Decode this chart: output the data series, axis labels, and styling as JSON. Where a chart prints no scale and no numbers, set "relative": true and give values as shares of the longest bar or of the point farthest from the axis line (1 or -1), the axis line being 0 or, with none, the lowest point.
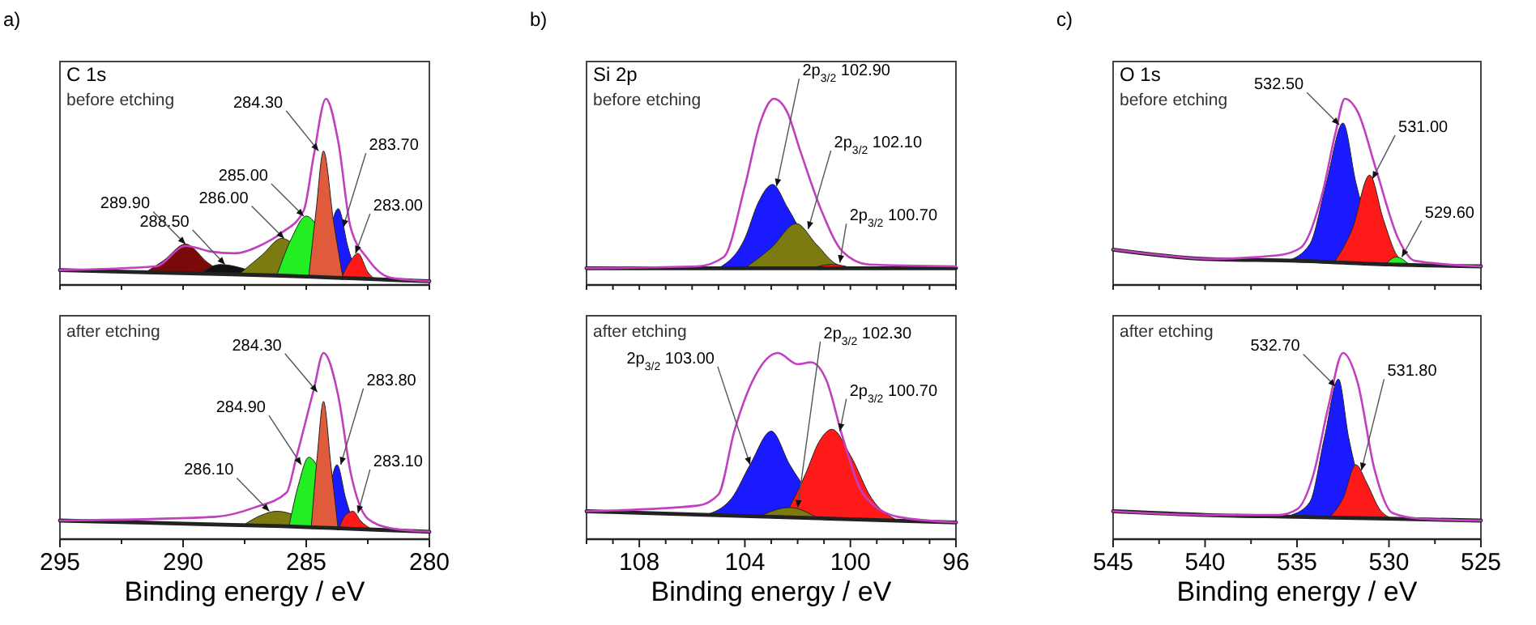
{
  "chart_data": [
    {
      "type": "area",
      "title": "C 1s",
      "subtitle": "before etching",
      "relative": true,
      "tick_labels": false,
      "xlim": [
        295,
        280
      ],
      "xticks": [
        {
          "value": 295,
          "label": null
        },
        {
          "value": 292.5,
          "label": null
        },
        {
          "value": 290,
          "label": null
        },
        {
          "value": 287.5,
          "label": null
        },
        {
          "value": 285,
          "label": null
        },
        {
          "value": 282.5,
          "label": null
        },
        {
          "value": 280,
          "label": null
        }
      ],
      "annotations": [
        "a)",
        {
          "text": "284.30",
          "x": 284.5,
          "y": 0.72
        },
        {
          "text": "285.00",
          "x": 285.1,
          "y": 0.37
        },
        {
          "text": "286.00",
          "x": 285.9,
          "y": 0.25
        },
        {
          "text": "288.50",
          "x": 288.3,
          "y": 0.11
        },
        {
          "text": "289.90",
          "x": 289.9,
          "y": 0.22
        },
        {
          "text": "283.70",
          "x": 283.5,
          "y": 0.31
        },
        {
          "text": "283.00",
          "x": 283.0,
          "y": 0.17
        }
      ],
      "series": [
        {
          "color": "#7a0a0a",
          "x": [
            291.5,
            290.8,
            289.9,
            289.0,
            288.3
          ],
          "values": [
            0.07,
            0.13,
            0.22,
            0.12,
            0.06
          ]
        },
        {
          "color": "#111111",
          "x": [
            289.3,
            288.5,
            287.6,
            286.8
          ],
          "values": [
            0.06,
            0.11,
            0.09,
            0.05
          ]
        },
        {
          "color": "#7b7b12",
          "x": [
            287.8,
            286.8,
            286.0,
            284.6
          ],
          "values": [
            0.05,
            0.16,
            0.25,
            0.04
          ]
        },
        {
          "color": "#22ee22",
          "x": [
            286.2,
            285.6,
            285.0,
            283.8
          ],
          "values": [
            0.05,
            0.25,
            0.37,
            0.04
          ]
        },
        {
          "color": "#1a1aff",
          "x": [
            284.3,
            283.7,
            283.3,
            282.9
          ],
          "values": [
            0.04,
            0.41,
            0.2,
            0.03
          ]
        },
        {
          "color": "#ff1a1a",
          "x": [
            283.6,
            283.2,
            282.9,
            282.5,
            282.2
          ],
          "values": [
            0.03,
            0.13,
            0.17,
            0.07,
            0.03
          ]
        },
        {
          "color": "#e05a3c",
          "x": [
            284.9,
            284.6,
            284.3,
            283.9,
            283.5
          ],
          "values": [
            0.04,
            0.4,
            0.72,
            0.35,
            0.03
          ]
        },
        {
          "type": "line",
          "color": "#222222",
          "x": [
            295,
            289,
            286,
            284,
            282,
            280
          ],
          "values": [
            0.08,
            0.06,
            0.05,
            0.04,
            0.03,
            0.02
          ]
        },
        {
          "type": "line",
          "color": "#c040c0",
          "x": [
            295,
            291.1,
            289.9,
            288.9,
            287.9,
            286.9,
            286.0,
            285.1,
            284.7,
            284.2,
            283.7,
            283.2,
            282.5,
            281.6,
            280
          ],
          "values": [
            0.08,
            0.1,
            0.21,
            0.18,
            0.17,
            0.21,
            0.28,
            0.4,
            0.69,
            1,
            0.77,
            0.31,
            0.14,
            0.04,
            0.02
          ]
        }
      ]
    },
    {
      "type": "area",
      "subtitle": "after etching",
      "xlabel": "Binding energy / eV",
      "relative": true,
      "tick_labels": "x",
      "xlim": [
        295,
        280
      ],
      "xticks": [
        295,
        {
          "value": 292.5,
          "label": null
        },
        290,
        {
          "value": 287.5,
          "label": null
        },
        285,
        {
          "value": 282.5,
          "label": null
        },
        280
      ],
      "annotations": [
        {
          "text": "284.30",
          "x": 284.55,
          "y": 0.79
        },
        {
          "text": "284.90",
          "x": 285.2,
          "y": 0.4
        },
        {
          "text": "286.10",
          "x": 286.5,
          "y": 0.15
        },
        {
          "text": "283.80",
          "x": 283.6,
          "y": 0.4
        },
        {
          "text": "283.10",
          "x": 282.9,
          "y": 0.14
        }
      ],
      "series": [
        {
          "color": "#7b7b12",
          "x": [
            287.5,
            286.8,
            286.2,
            284.5
          ],
          "values": [
            0.08,
            0.13,
            0.15,
            0.06
          ]
        },
        {
          "color": "#22ee22",
          "x": [
            285.7,
            285.3,
            284.9,
            283.8
          ],
          "values": [
            0.07,
            0.3,
            0.44,
            0.06
          ]
        },
        {
          "color": "#1a1aff",
          "x": [
            284.3,
            284.0,
            283.75,
            283.4,
            283.0
          ],
          "values": [
            0.06,
            0.3,
            0.4,
            0.22,
            0.05
          ]
        },
        {
          "color": "#ff1a1a",
          "x": [
            283.7,
            283.4,
            283.1,
            282.8,
            282.3
          ],
          "values": [
            0.05,
            0.13,
            0.15,
            0.1,
            0.05
          ]
        },
        {
          "color": "#e05a3c",
          "x": [
            284.8,
            284.55,
            284.3,
            284.0,
            283.7
          ],
          "values": [
            0.06,
            0.45,
            0.74,
            0.4,
            0.05
          ]
        },
        {
          "type": "line",
          "color": "#222222",
          "x": [
            295,
            289,
            286,
            284,
            282,
            280
          ],
          "values": [
            0.1,
            0.08,
            0.07,
            0.06,
            0.05,
            0.04
          ]
        },
        {
          "type": "line",
          "color": "#c040c0",
          "x": [
            295,
            288.7,
            287.1,
            285.8,
            285.4,
            284.7,
            284.3,
            283.7,
            283.2,
            282.5,
            281.6,
            280
          ],
          "values": [
            0.1,
            0.12,
            0.17,
            0.25,
            0.44,
            0.8,
            1,
            0.77,
            0.36,
            0.11,
            0.06,
            0.04
          ]
        }
      ]
    },
    {
      "type": "area",
      "title": "Si 2p",
      "subtitle": "before etching",
      "relative": true,
      "tick_labels": false,
      "xlim": [
        110,
        96
      ],
      "xticks": [
        {
          "value": 110,
          "label": null
        },
        {
          "value": 109,
          "label": null
        },
        {
          "value": 108,
          "label": null
        },
        {
          "value": 107,
          "label": null
        },
        {
          "value": 106,
          "label": null
        },
        {
          "value": 105,
          "label": null
        },
        {
          "value": 104,
          "label": null
        },
        {
          "value": 103,
          "label": null
        },
        {
          "value": 102,
          "label": null
        },
        {
          "value": 101,
          "label": null
        },
        {
          "value": 100,
          "label": null
        },
        {
          "value": 99,
          "label": null
        },
        {
          "value": 98,
          "label": null
        },
        {
          "value": 97,
          "label": null
        },
        {
          "value": 96,
          "label": null
        }
      ],
      "annotations": [
        "b)",
        {
          "text": "2p$_{3/2}$ 102.90",
          "x": 102.8,
          "y": 0.53
        },
        {
          "text": "2p$_{3/2}$ 102.10",
          "x": 101.6,
          "y": 0.3
        },
        {
          "text": "2p$_{3/2}$ 100.70",
          "x": 100.4,
          "y": 0.12
        }
      ],
      "series": [
        {
          "color": "#1a1aff",
          "x": [
            105.0,
            104.0,
            103.5,
            102.95,
            102.4,
            101.2
          ],
          "values": [
            0.09,
            0.25,
            0.44,
            0.54,
            0.42,
            0.09
          ]
        },
        {
          "color": "#7b7b12",
          "x": [
            104.0,
            103.0,
            102.05,
            101.3,
            100.5,
            99.8
          ],
          "values": [
            0.09,
            0.2,
            0.33,
            0.22,
            0.11,
            0.09
          ]
        },
        {
          "color": "#ff1a1a",
          "x": [
            101.5,
            100.7,
            99.9
          ],
          "values": [
            0.09,
            0.11,
            0.09
          ]
        },
        {
          "type": "line",
          "color": "#222222",
          "x": [
            110,
            103,
            96
          ],
          "values": [
            0.09,
            0.09,
            0.09
          ]
        },
        {
          "type": "line",
          "color": "#c040c0",
          "x": [
            110,
            105.8,
            104.8,
            104.0,
            103.4,
            102.9,
            102.4,
            101.9,
            101.1,
            100.3,
            99.3,
            96
          ],
          "values": [
            0.09,
            0.1,
            0.15,
            0.53,
            0.88,
            1,
            0.93,
            0.72,
            0.4,
            0.18,
            0.11,
            0.1
          ]
        }
      ]
    },
    {
      "type": "area",
      "subtitle": "after etching",
      "xlabel": "Binding energy / eV",
      "relative": true,
      "tick_labels": "x",
      "xlim": [
        110,
        96
      ],
      "xticks": [
        {
          "value": 110,
          "label": null
        },
        {
          "value": 109,
          "label": null
        },
        108,
        {
          "value": 107,
          "label": null
        },
        {
          "value": 106,
          "label": null
        },
        {
          "value": 105,
          "label": null
        },
        104,
        {
          "value": 103,
          "label": null
        },
        {
          "value": 102,
          "label": null
        },
        {
          "value": 101,
          "label": null
        },
        100,
        {
          "value": 99,
          "label": null
        },
        {
          "value": 98,
          "label": null
        },
        {
          "value": 97,
          "label": null
        },
        96
      ],
      "annotations": [
        {
          "text": "2p$_{3/2}$ 103.00",
          "x": 103.8,
          "y": 0.4
        },
        {
          "text": "2p$_{3/2}$ 102.30",
          "x": 102.0,
          "y": 0.17
        },
        {
          "text": "2p$_{3/2}$ 100.70",
          "x": 100.4,
          "y": 0.58
        }
      ],
      "series": [
        {
          "color": "#1a1aff",
          "x": [
            105.5,
            104.5,
            103.8,
            103.0,
            102.3,
            100.8
          ],
          "values": [
            0.13,
            0.22,
            0.4,
            0.58,
            0.4,
            0.11
          ]
        },
        {
          "color": "#ff1a1a",
          "x": [
            102.5,
            101.7,
            101.2,
            100.7,
            100.0,
            99.2,
            98.2
          ],
          "values": [
            0.12,
            0.35,
            0.52,
            0.59,
            0.45,
            0.22,
            0.1
          ]
        },
        {
          "color": "#7b7b12",
          "x": [
            103.5,
            102.3,
            101.2
          ],
          "values": [
            0.12,
            0.17,
            0.11
          ]
        },
        {
          "type": "line",
          "color": "#222222",
          "x": [
            110,
            103,
            96
          ],
          "values": [
            0.15,
            0.12,
            0.09
          ]
        },
        {
          "type": "line",
          "color": "#c040c0",
          "x": [
            110,
            105.8,
            105.0,
            104.4,
            103.6,
            102.75,
            102.0,
            101.5,
            100.9,
            100.3,
            99.5,
            98.2,
            96
          ],
          "values": [
            0.15,
            0.18,
            0.24,
            0.58,
            0.88,
            1,
            0.94,
            0.95,
            0.85,
            0.55,
            0.24,
            0.12,
            0.09
          ]
        }
      ]
    },
    {
      "type": "area",
      "title": "O 1s",
      "subtitle": "before etching",
      "relative": true,
      "tick_labels": false,
      "xlim": [
        545,
        525
      ],
      "xticks": [
        {
          "value": 545,
          "label": null
        },
        {
          "value": 542.5,
          "label": null
        },
        {
          "value": 540,
          "label": null
        },
        {
          "value": 537.5,
          "label": null
        },
        {
          "value": 535,
          "label": null
        },
        {
          "value": 532.5,
          "label": null
        },
        {
          "value": 530,
          "label": null
        },
        {
          "value": 527.5,
          "label": null
        },
        {
          "value": 525,
          "label": null
        }
      ],
      "annotations": [
        "c)",
        {
          "text": "532.50",
          "x": 532.7,
          "y": 0.86
        },
        {
          "text": "531.00",
          "x": 530.9,
          "y": 0.57
        },
        {
          "text": "529.60",
          "x": 529.3,
          "y": 0.15
        }
      ],
      "series": [
        {
          "color": "#1a1aff",
          "x": [
            535.5,
            534.3,
            533.4,
            532.5,
            531.8,
            530.5
          ],
          "values": [
            0.13,
            0.22,
            0.55,
            0.87,
            0.55,
            0.12
          ]
        },
        {
          "color": "#ff1a1a",
          "x": [
            533.0,
            532.0,
            531.05,
            530.3,
            529.5,
            528.8
          ],
          "values": [
            0.12,
            0.3,
            0.59,
            0.35,
            0.15,
            0.11
          ]
        },
        {
          "color": "#22ee22",
          "x": [
            530.2,
            529.6,
            528.9
          ],
          "values": [
            0.11,
            0.15,
            0.11
          ]
        },
        {
          "type": "line",
          "color": "#222222",
          "x": [
            545,
            540,
            535,
            530,
            525
          ],
          "values": [
            0.19,
            0.14,
            0.13,
            0.11,
            0.1
          ]
        },
        {
          "type": "line",
          "color": "#c040c0",
          "x": [
            545,
            542.4,
            539.8,
            536.0,
            534.8,
            533.6,
            532.9,
            532.4,
            531.7,
            530.7,
            529.5,
            528.6,
            525
          ],
          "values": [
            0.19,
            0.16,
            0.14,
            0.16,
            0.2,
            0.5,
            0.82,
            1,
            0.93,
            0.62,
            0.25,
            0.13,
            0.1
          ]
        }
      ]
    },
    {
      "type": "area",
      "subtitle": "after etching",
      "xlabel": "Binding energy / eV",
      "relative": true,
      "tick_labels": "x",
      "xlim": [
        545,
        525
      ],
      "xticks": [
        545,
        {
          "value": 542.5,
          "label": null
        },
        540,
        {
          "value": 537.5,
          "label": null
        },
        535,
        {
          "value": 532.5,
          "label": null
        },
        530,
        {
          "value": 527.5,
          "label": null
        },
        525
      ],
      "annotations": [
        {
          "text": "532.70",
          "x": 532.9,
          "y": 0.82
        },
        {
          "text": "531.80",
          "x": 531.5,
          "y": 0.37
        }
      ],
      "series": [
        {
          "color": "#1a1aff",
          "x": [
            535.3,
            534.3,
            533.5,
            532.75,
            532.2,
            531.0
          ],
          "values": [
            0.13,
            0.2,
            0.55,
            0.86,
            0.55,
            0.12
          ]
        },
        {
          "color": "#ff1a1a",
          "x": [
            533.2,
            532.5,
            531.8,
            531.2,
            530.5,
            529.8
          ],
          "values": [
            0.12,
            0.22,
            0.4,
            0.3,
            0.16,
            0.11
          ]
        },
        {
          "type": "line",
          "color": "#222222",
          "x": [
            545,
            540,
            535,
            530,
            525
          ],
          "values": [
            0.15,
            0.13,
            0.12,
            0.11,
            0.1
          ]
        },
        {
          "type": "line",
          "color": "#c040c0",
          "x": [
            545,
            539.8,
            536,
            535,
            534.1,
            533.3,
            532.5,
            531.7,
            530.8,
            529.8,
            528.3,
            525
          ],
          "values": [
            0.15,
            0.13,
            0.13,
            0.16,
            0.35,
            0.71,
            1,
            0.84,
            0.38,
            0.14,
            0.11,
            0.1
          ]
        }
      ]
    }
  ]
}
